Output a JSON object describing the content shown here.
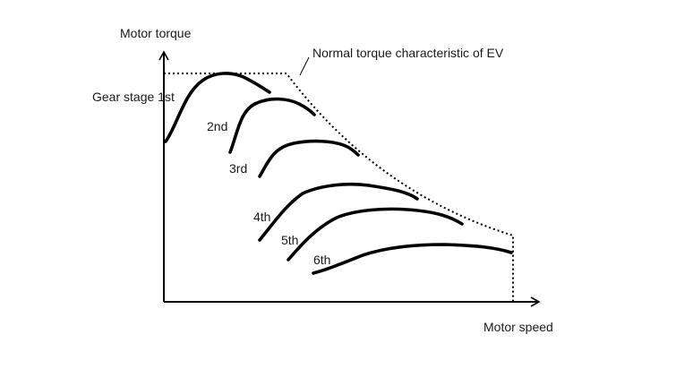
{
  "axes": {
    "y_label": "Motor torque",
    "x_label": "Motor speed"
  },
  "envelope": {
    "label": "Normal torque characteristic of EV",
    "line_style": "dotted"
  },
  "gears": [
    {
      "label": "Gear stage 1st"
    },
    {
      "label": "2nd"
    },
    {
      "label": "3rd"
    },
    {
      "label": "4th"
    },
    {
      "label": "5th"
    },
    {
      "label": "6th"
    }
  ],
  "colors": {
    "line": "#000000",
    "text": "#1a1a1a",
    "background": "#ffffff"
  }
}
